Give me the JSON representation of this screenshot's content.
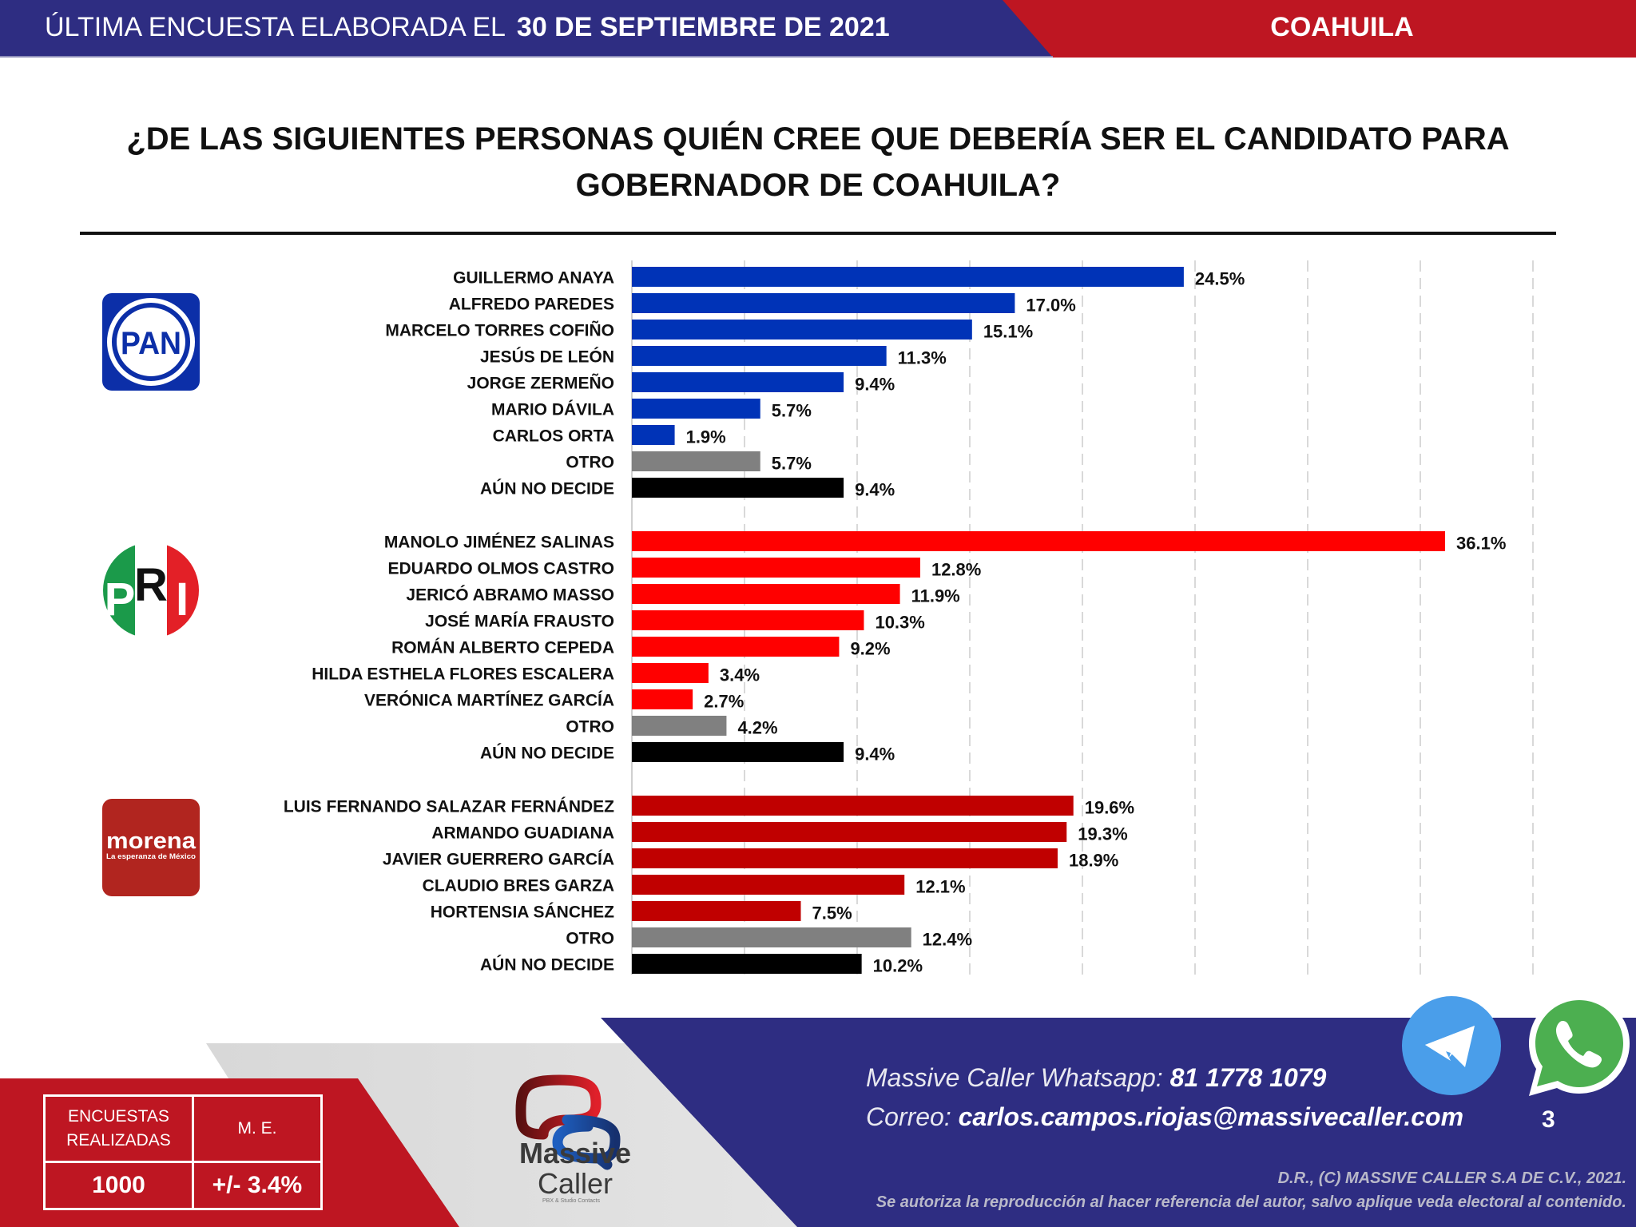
{
  "header": {
    "survey_prefix": "ÚLTIMA ENCUESTA ELABORADA EL",
    "survey_date": "30 DE SEPTIEMBRE DE 2021",
    "state": "COAHUILA"
  },
  "colors": {
    "navy": "#2E2D82",
    "crimson": "#BE1622",
    "pan_blue": "#0033B7",
    "pri_red": "#FF0000",
    "morena_red": "#C00000",
    "other_gray": "#808080",
    "undecided_black": "#000000"
  },
  "logos": {
    "pan": "PAN",
    "pri": [
      "P",
      "R",
      "I"
    ],
    "morena_name": "morena",
    "morena_tagline": "La esperanza de México"
  },
  "chart_data": {
    "type": "bar",
    "orientation": "horizontal",
    "title": "¿DE LAS SIGUIENTES PERSONAS QUIÉN CREE QUE DEBERÍA SER EL CANDIDATO PARA GOBERNADOR DE COAHUILA?",
    "xlabel": "",
    "ylabel": "",
    "xlim": [
      0,
      40
    ],
    "grid": "vertical dashed every 5",
    "value_suffix": "%",
    "groups": [
      {
        "party": "PAN",
        "bars": [
          {
            "label": "GUILLERMO ANAYA",
            "value": 24.5,
            "kind": "candidate"
          },
          {
            "label": "ALFREDO PAREDES",
            "value": 17.0,
            "kind": "candidate"
          },
          {
            "label": "MARCELO TORRES COFIÑO",
            "value": 15.1,
            "kind": "candidate"
          },
          {
            "label": "JESÚS DE LEÓN",
            "value": 11.3,
            "kind": "candidate"
          },
          {
            "label": "JORGE ZERMEÑO",
            "value": 9.4,
            "kind": "candidate"
          },
          {
            "label": "MARIO DÁVILA",
            "value": 5.7,
            "kind": "candidate"
          },
          {
            "label": "CARLOS ORTA",
            "value": 1.9,
            "kind": "candidate"
          },
          {
            "label": "OTRO",
            "value": 5.7,
            "kind": "other"
          },
          {
            "label": "AÚN NO DECIDE",
            "value": 9.4,
            "kind": "undecided"
          }
        ]
      },
      {
        "party": "PRI",
        "bars": [
          {
            "label": "MANOLO JIMÉNEZ SALINAS",
            "value": 36.1,
            "kind": "candidate"
          },
          {
            "label": "EDUARDO OLMOS CASTRO",
            "value": 12.8,
            "kind": "candidate"
          },
          {
            "label": "JERICÓ ABRAMO MASSO",
            "value": 11.9,
            "kind": "candidate"
          },
          {
            "label": "JOSÉ MARÍA FRAUSTO",
            "value": 10.3,
            "kind": "candidate"
          },
          {
            "label": "ROMÁN ALBERTO CEPEDA",
            "value": 9.2,
            "kind": "candidate"
          },
          {
            "label": "HILDA ESTHELA FLORES ESCALERA",
            "value": 3.4,
            "kind": "candidate"
          },
          {
            "label": "VERÓNICA MARTÍNEZ GARCÍA",
            "value": 2.7,
            "kind": "candidate"
          },
          {
            "label": "OTRO",
            "value": 4.2,
            "kind": "other"
          },
          {
            "label": "AÚN NO DECIDE",
            "value": 9.4,
            "kind": "undecided"
          }
        ]
      },
      {
        "party": "MORENA",
        "bars": [
          {
            "label": "LUIS FERNANDO SALAZAR FERNÁNDEZ",
            "value": 19.6,
            "kind": "candidate"
          },
          {
            "label": "ARMANDO GUADIANA",
            "value": 19.3,
            "kind": "candidate"
          },
          {
            "label": "JAVIER GUERRERO GARCÍA",
            "value": 18.9,
            "kind": "candidate"
          },
          {
            "label": "CLAUDIO BRES GARZA",
            "value": 12.1,
            "kind": "candidate"
          },
          {
            "label": "HORTENSIA SÁNCHEZ",
            "value": 7.5,
            "kind": "candidate"
          },
          {
            "label": "OTRO",
            "value": 12.4,
            "kind": "other"
          },
          {
            "label": "AÚN NO DECIDE",
            "value": 10.2,
            "kind": "undecided"
          }
        ]
      }
    ]
  },
  "stats": {
    "surveys_label_line1": "ENCUESTAS",
    "surveys_label_line2": "REALIZADAS",
    "margin_label": "M. E.",
    "surveys_value": "1000",
    "margin_value": "+/- 3.4%"
  },
  "brand": {
    "name_line1": "Massive",
    "name_line2": "Caller",
    "tagline": "PBX & Studio Contacts"
  },
  "contact": {
    "whatsapp_label": "Massive Caller Whatsapp:",
    "whatsapp_number": "81 1778 1079",
    "email_label": "Correo:",
    "email": "carlos.campos.riojas@massivecaller.com"
  },
  "page_number": "3",
  "copyright_line1": "D.R., (C) MASSIVE CALLER S.A DE C.V., 2021.",
  "copyright_line2": "Se autoriza la reproducción al hacer referencia del autor, salvo aplique veda electoral al contenido.",
  "icons": {
    "telegram": "telegram-icon",
    "whatsapp": "whatsapp-icon"
  }
}
